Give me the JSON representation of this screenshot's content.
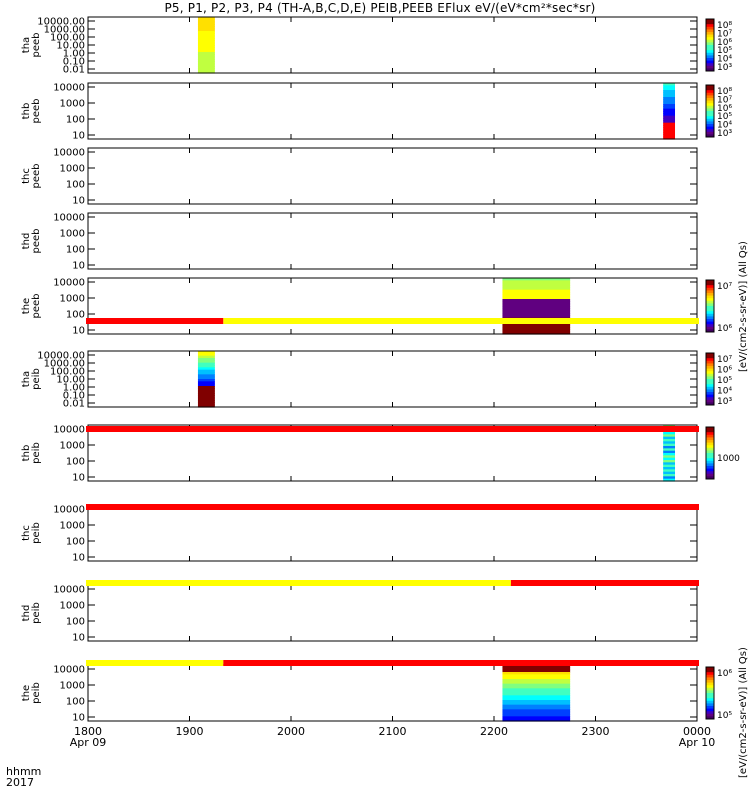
{
  "title": "P5, P1, P2, P3, P4 (TH-A,B,C,D,E) PEIB,PEEB EFlux eV/(eV*cm²*sec*sr)",
  "footer": {
    "line1": "hhmm",
    "line2": "2017"
  },
  "colorbar_labels": {
    "electron": "[eV/(cm2-s-sr-eV)] (All Qs)",
    "ion": "[eV/(cm2-s-sr-eV)] (All Qs)"
  },
  "chart_data": {
    "type": "heatmap",
    "x_axis": {
      "range": [
        "1800",
        "0000"
      ],
      "ticks": [
        "1800",
        "1900",
        "2000",
        "2100",
        "2200",
        "2300",
        "0000"
      ],
      "date_labels": {
        "1800": "Apr 09",
        "0000": "Apr 10"
      }
    },
    "panels": [
      {
        "probe": "tha",
        "instrument": "peeb",
        "ylabel": "tha\npeeb",
        "yscale": "log",
        "yticks": [
          "10000.00",
          "1000.00",
          "100.00",
          "10.00",
          "1.00",
          "0.10",
          "0.01"
        ],
        "data_span": [
          "1905",
          "1915"
        ],
        "colorbar_ticks": [
          "10⁸",
          "10⁷",
          "10⁶",
          "10⁵",
          "10⁴",
          "10³"
        ]
      },
      {
        "probe": "thb",
        "instrument": "peeb",
        "ylabel": "thb\npeeb",
        "yscale": "log",
        "yticks": [
          "10000",
          "1000",
          "100",
          "10"
        ],
        "data_span": [
          "2340",
          "2347"
        ],
        "colorbar_ticks": [
          "10⁸",
          "10⁷",
          "10⁶",
          "10⁵",
          "10⁴",
          "10³"
        ]
      },
      {
        "probe": "thc",
        "instrument": "peeb",
        "ylabel": "thc\npeeb",
        "yscale": "log",
        "yticks": [
          "10000",
          "1000",
          "100",
          "10"
        ],
        "data_span": null
      },
      {
        "probe": "thd",
        "instrument": "peeb",
        "ylabel": "thd\npeeb",
        "yscale": "log",
        "yticks": [
          "10000",
          "1000",
          "100",
          "10"
        ],
        "data_span": null
      },
      {
        "probe": "the",
        "instrument": "peeb",
        "ylabel": "the\npeeb",
        "yscale": "log",
        "yticks": [
          "10000",
          "1000",
          "100",
          "10"
        ],
        "data_span": [
          "2205",
          "2245"
        ],
        "colorbar_ticks": [
          "10⁷",
          "10⁶"
        ]
      },
      {
        "probe": "tha",
        "instrument": "peib",
        "ylabel": "tha\npeib",
        "yscale": "log",
        "yticks": [
          "10000.00",
          "1000.00",
          "100.00",
          "10.00",
          "1.00",
          "0.10",
          "0.01"
        ],
        "data_span": [
          "1905",
          "1915"
        ],
        "colorbar_ticks": [
          "10⁷",
          "10⁶",
          "10⁵",
          "10⁴",
          "10³"
        ]
      },
      {
        "probe": "thb",
        "instrument": "peib",
        "ylabel": "thb\npeib",
        "yscale": "log",
        "yticks": [
          "10000",
          "1000",
          "100",
          "10"
        ],
        "data_span": [
          "2340",
          "2347"
        ],
        "colorbar_ticks": [
          "1000"
        ]
      },
      {
        "probe": "thc",
        "instrument": "peib",
        "ylabel": "thc\npeib",
        "yscale": "log",
        "yticks": [
          "10000",
          "1000",
          "100",
          "10"
        ],
        "data_span": null
      },
      {
        "probe": "thd",
        "instrument": "peib",
        "ylabel": "thd\npeib",
        "yscale": "log",
        "yticks": [
          "10000",
          "1000",
          "100",
          "10"
        ],
        "data_span": null
      },
      {
        "probe": "the",
        "instrument": "peib",
        "ylabel": "the\npeib",
        "yscale": "log",
        "yticks": [
          "10000",
          "1000",
          "100",
          "10"
        ],
        "data_span": [
          "2205",
          "2245"
        ],
        "colorbar_ticks": [
          "10⁶",
          "10⁵"
        ]
      }
    ],
    "mode_bars": [
      {
        "segments": [
          {
            "from": "1800",
            "to": "1920",
            "color": "#ff0000"
          },
          {
            "from": "1920",
            "to": "0000",
            "color": "#ffff00"
          }
        ]
      },
      {
        "segments": [
          {
            "from": "1800",
            "to": "0000",
            "color": "#ff0000"
          }
        ]
      },
      {
        "segments": [
          {
            "from": "1800",
            "to": "0000",
            "color": "#ff0000"
          }
        ]
      },
      {
        "segments": [
          {
            "from": "1800",
            "to": "2210",
            "color": "#ffff00"
          },
          {
            "from": "2210",
            "to": "0000",
            "color": "#ff0000"
          }
        ]
      },
      {
        "segments": [
          {
            "from": "1800",
            "to": "1920",
            "color": "#ffff00"
          },
          {
            "from": "1920",
            "to": "0000",
            "color": "#ff0000"
          }
        ]
      }
    ]
  }
}
